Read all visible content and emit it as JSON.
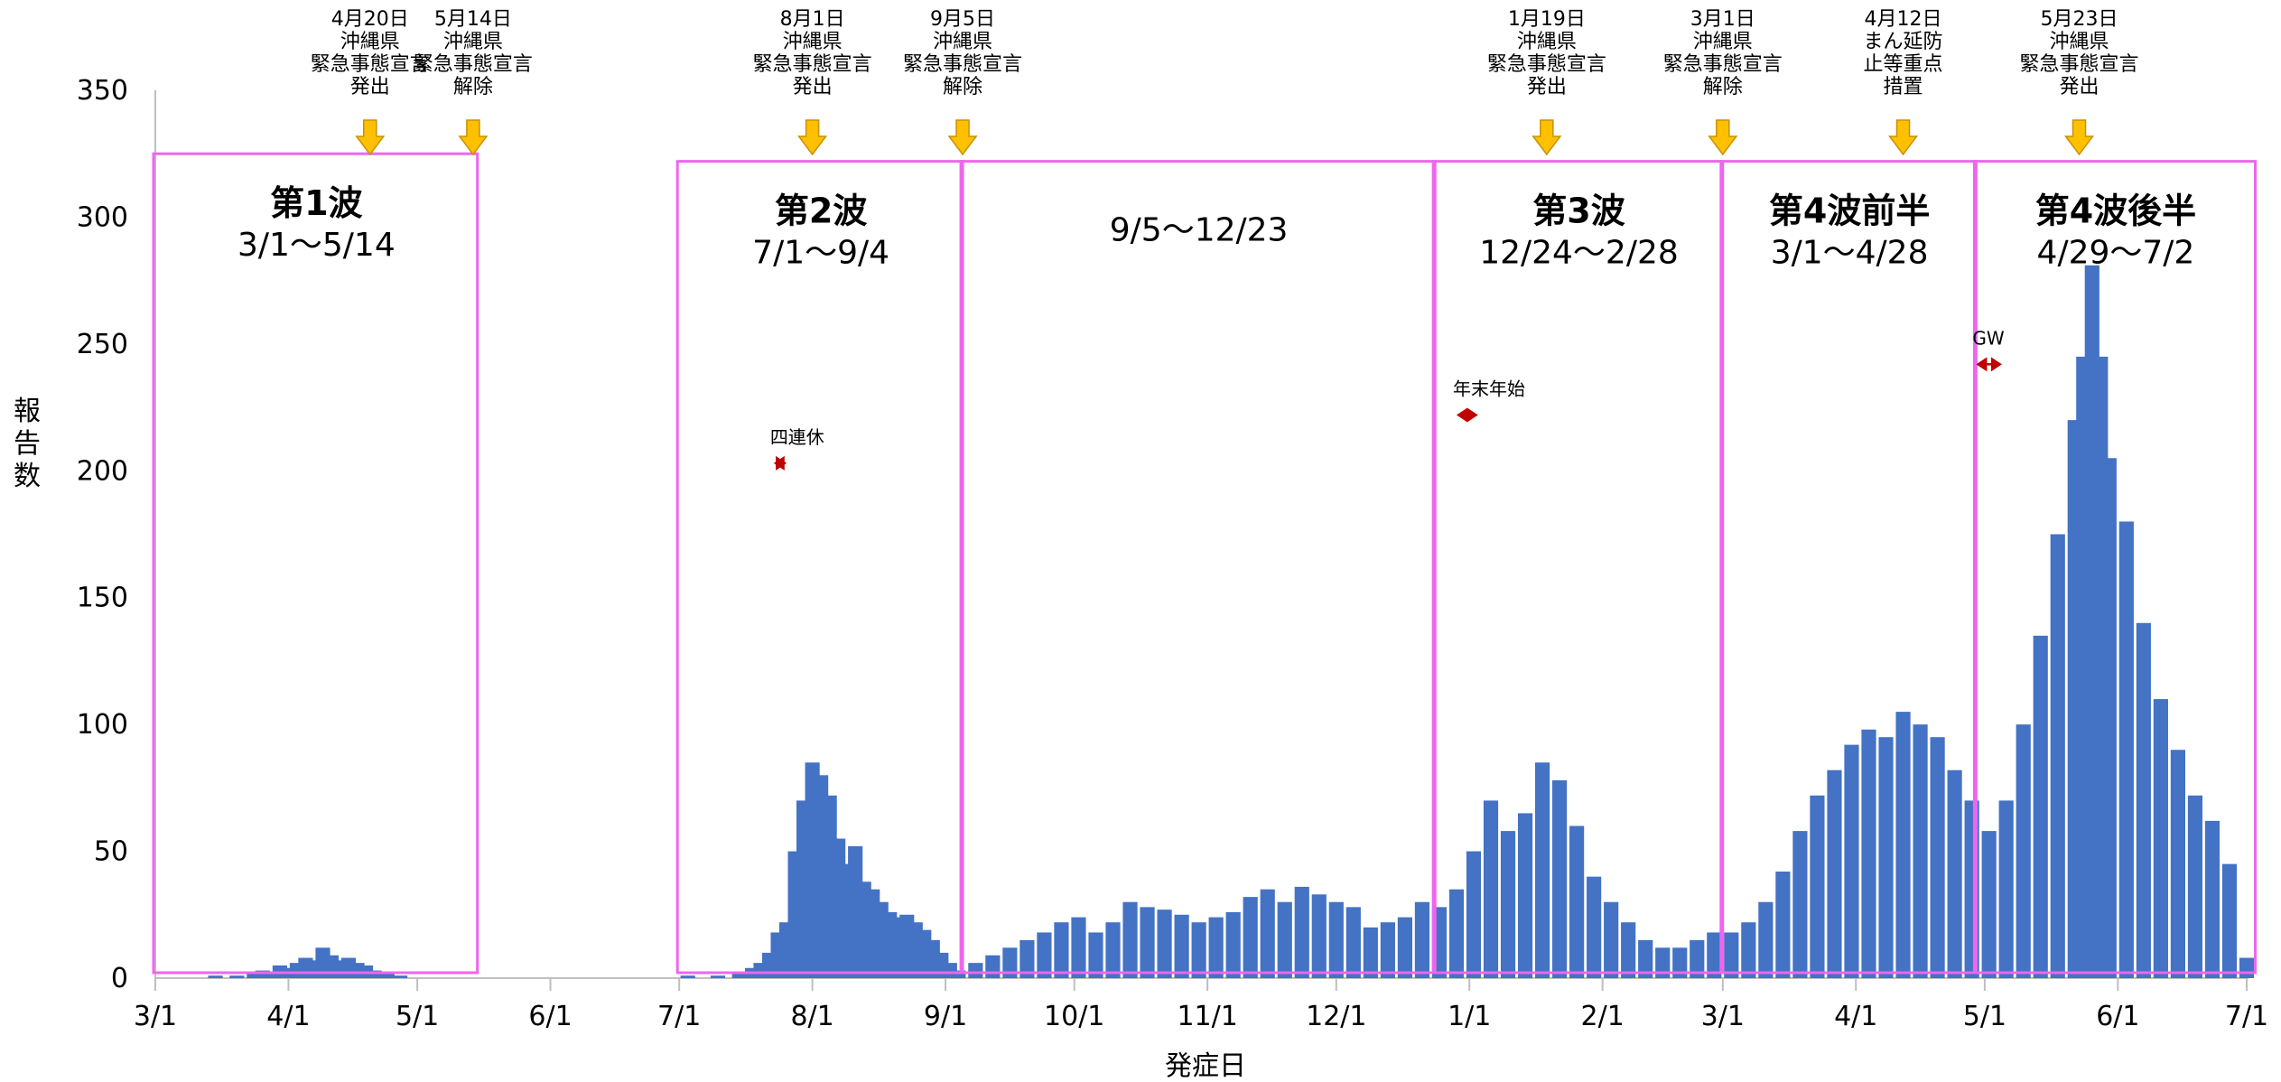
{
  "chart_data": {
    "type": "bar",
    "xlabel": "発症日",
    "ylabel": "報告数",
    "ylim": [
      0,
      350
    ],
    "yticks": [
      0,
      50,
      100,
      150,
      200,
      250,
      300,
      350
    ],
    "grid": false,
    "date_range": [
      "2020-03-01",
      "2021-07-02"
    ],
    "x_ticks": [
      {
        "date": "2020-03-01",
        "label": "3/1"
      },
      {
        "date": "2020-04-01",
        "label": "4/1"
      },
      {
        "date": "2020-05-01",
        "label": "5/1"
      },
      {
        "date": "2020-06-01",
        "label": "6/1"
      },
      {
        "date": "2020-07-01",
        "label": "7/1"
      },
      {
        "date": "2020-08-01",
        "label": "8/1"
      },
      {
        "date": "2020-09-01",
        "label": "9/1"
      },
      {
        "date": "2020-10-01",
        "label": "10/1"
      },
      {
        "date": "2020-11-01",
        "label": "11/1"
      },
      {
        "date": "2020-12-01",
        "label": "12/1"
      },
      {
        "date": "2021-01-01",
        "label": "1/1"
      },
      {
        "date": "2021-02-01",
        "label": "2/1"
      },
      {
        "date": "2021-03-01",
        "label": "3/1"
      },
      {
        "date": "2021-04-01",
        "label": "4/1"
      },
      {
        "date": "2021-05-01",
        "label": "5/1"
      },
      {
        "date": "2021-06-01",
        "label": "6/1"
      },
      {
        "date": "2021-07-01",
        "label": "7/1"
      }
    ],
    "series": [
      {
        "color": "#4472c4",
        "points": [
          [
            "2020-03-15",
            1
          ],
          [
            "2020-03-20",
            1
          ],
          [
            "2020-03-24",
            2
          ],
          [
            "2020-03-26",
            3
          ],
          [
            "2020-03-28",
            2
          ],
          [
            "2020-03-30",
            5
          ],
          [
            "2020-04-01",
            4
          ],
          [
            "2020-04-03",
            6
          ],
          [
            "2020-04-05",
            8
          ],
          [
            "2020-04-07",
            7
          ],
          [
            "2020-04-09",
            12
          ],
          [
            "2020-04-11",
            9
          ],
          [
            "2020-04-13",
            7
          ],
          [
            "2020-04-15",
            8
          ],
          [
            "2020-04-17",
            6
          ],
          [
            "2020-04-19",
            5
          ],
          [
            "2020-04-21",
            3
          ],
          [
            "2020-04-24",
            2
          ],
          [
            "2020-04-27",
            1
          ],
          [
            "2020-07-03",
            1
          ],
          [
            "2020-07-10",
            1
          ],
          [
            "2020-07-15",
            2
          ],
          [
            "2020-07-18",
            4
          ],
          [
            "2020-07-20",
            6
          ],
          [
            "2020-07-22",
            10
          ],
          [
            "2020-07-24",
            18
          ],
          [
            "2020-07-26",
            22
          ],
          [
            "2020-07-28",
            50
          ],
          [
            "2020-07-30",
            70
          ],
          [
            "2020-08-01",
            85
          ],
          [
            "2020-08-03",
            80
          ],
          [
            "2020-08-05",
            72
          ],
          [
            "2020-08-07",
            55
          ],
          [
            "2020-08-09",
            45
          ],
          [
            "2020-08-11",
            52
          ],
          [
            "2020-08-13",
            38
          ],
          [
            "2020-08-15",
            35
          ],
          [
            "2020-08-17",
            30
          ],
          [
            "2020-08-19",
            26
          ],
          [
            "2020-08-21",
            24
          ],
          [
            "2020-08-23",
            25
          ],
          [
            "2020-08-25",
            22
          ],
          [
            "2020-08-27",
            19
          ],
          [
            "2020-08-29",
            15
          ],
          [
            "2020-08-31",
            10
          ],
          [
            "2020-09-02",
            6
          ],
          [
            "2020-09-04",
            3
          ],
          [
            "2020-09-08",
            6
          ],
          [
            "2020-09-12",
            9
          ],
          [
            "2020-09-16",
            12
          ],
          [
            "2020-09-20",
            15
          ],
          [
            "2020-09-24",
            18
          ],
          [
            "2020-09-28",
            22
          ],
          [
            "2020-10-02",
            24
          ],
          [
            "2020-10-06",
            18
          ],
          [
            "2020-10-10",
            22
          ],
          [
            "2020-10-14",
            30
          ],
          [
            "2020-10-18",
            28
          ],
          [
            "2020-10-22",
            27
          ],
          [
            "2020-10-26",
            25
          ],
          [
            "2020-10-30",
            22
          ],
          [
            "2020-11-03",
            24
          ],
          [
            "2020-11-07",
            26
          ],
          [
            "2020-11-11",
            32
          ],
          [
            "2020-11-15",
            35
          ],
          [
            "2020-11-19",
            30
          ],
          [
            "2020-11-23",
            36
          ],
          [
            "2020-11-27",
            33
          ],
          [
            "2020-12-01",
            30
          ],
          [
            "2020-12-05",
            28
          ],
          [
            "2020-12-09",
            20
          ],
          [
            "2020-12-13",
            22
          ],
          [
            "2020-12-17",
            24
          ],
          [
            "2020-12-21",
            30
          ],
          [
            "2020-12-25",
            28
          ],
          [
            "2020-12-29",
            35
          ],
          [
            "2021-01-02",
            50
          ],
          [
            "2021-01-06",
            70
          ],
          [
            "2021-01-10",
            58
          ],
          [
            "2021-01-14",
            65
          ],
          [
            "2021-01-18",
            85
          ],
          [
            "2021-01-22",
            78
          ],
          [
            "2021-01-26",
            60
          ],
          [
            "2021-01-30",
            40
          ],
          [
            "2021-02-03",
            30
          ],
          [
            "2021-02-07",
            22
          ],
          [
            "2021-02-11",
            15
          ],
          [
            "2021-02-15",
            12
          ],
          [
            "2021-02-19",
            12
          ],
          [
            "2021-02-23",
            15
          ],
          [
            "2021-02-27",
            18
          ],
          [
            "2021-03-03",
            18
          ],
          [
            "2021-03-07",
            22
          ],
          [
            "2021-03-11",
            30
          ],
          [
            "2021-03-15",
            42
          ],
          [
            "2021-03-19",
            58
          ],
          [
            "2021-03-23",
            72
          ],
          [
            "2021-03-27",
            82
          ],
          [
            "2021-03-31",
            92
          ],
          [
            "2021-04-04",
            98
          ],
          [
            "2021-04-08",
            95
          ],
          [
            "2021-04-12",
            105
          ],
          [
            "2021-04-16",
            100
          ],
          [
            "2021-04-20",
            95
          ],
          [
            "2021-04-24",
            82
          ],
          [
            "2021-04-28",
            70
          ],
          [
            "2021-05-02",
            58
          ],
          [
            "2021-05-06",
            70
          ],
          [
            "2021-05-10",
            100
          ],
          [
            "2021-05-14",
            135
          ],
          [
            "2021-05-18",
            175
          ],
          [
            "2021-05-22",
            220
          ],
          [
            "2021-05-24",
            245
          ],
          [
            "2021-05-26",
            281
          ],
          [
            "2021-05-28",
            245
          ],
          [
            "2021-05-30",
            205
          ],
          [
            "2021-06-03",
            180
          ],
          [
            "2021-06-07",
            140
          ],
          [
            "2021-06-11",
            110
          ],
          [
            "2021-06-15",
            90
          ],
          [
            "2021-06-19",
            72
          ],
          [
            "2021-06-23",
            62
          ],
          [
            "2021-06-27",
            45
          ],
          [
            "2021-07-01",
            8
          ]
        ]
      }
    ],
    "waves": [
      {
        "name": "第1波",
        "range": "3/1～5/14",
        "start": "2020-03-01",
        "end": "2020-05-14",
        "top": 325
      },
      {
        "name": "第2波",
        "range": "7/1～9/4",
        "start": "2020-07-01",
        "end": "2020-09-04",
        "top": 322
      },
      {
        "name": "",
        "range": "9/5～12/23",
        "start": "2020-09-05",
        "end": "2020-12-23",
        "top": 322
      },
      {
        "name": "第3波",
        "range": "12/24～2/28",
        "start": "2020-12-24",
        "end": "2021-02-28",
        "top": 322
      },
      {
        "name": "第4波前半",
        "range": "3/1～4/28",
        "start": "2021-03-01",
        "end": "2021-04-28",
        "top": 322
      },
      {
        "name": "第4波後半",
        "range": "4/29～7/2",
        "start": "2021-04-29",
        "end": "2021-07-02",
        "top": 322
      }
    ],
    "annotations": [
      {
        "date": "2020-04-20",
        "lines": [
          "4月20日",
          "沖縄県",
          "緊急事態宣言",
          "発出"
        ]
      },
      {
        "date": "2020-05-14",
        "lines": [
          "5月14日",
          "沖縄県",
          "緊急事態宣言",
          "解除"
        ]
      },
      {
        "date": "2020-08-01",
        "lines": [
          "8月1日",
          "沖縄県",
          "緊急事態宣言",
          "発出"
        ]
      },
      {
        "date": "2020-09-05",
        "lines": [
          "9月5日",
          "沖縄県",
          "緊急事態宣言",
          "解除"
        ]
      },
      {
        "date": "2021-01-19",
        "lines": [
          "1月19日",
          "沖縄県",
          "緊急事態宣言",
          "発出"
        ]
      },
      {
        "date": "2021-03-01",
        "lines": [
          "3月1日",
          "沖縄県",
          "緊急事態宣言",
          "解除"
        ]
      },
      {
        "date": "2021-04-12",
        "lines": [
          "4月12日",
          "まん延防",
          "止等重点",
          "措置"
        ]
      },
      {
        "date": "2021-05-23",
        "lines": [
          "5月23日",
          "沖縄県",
          "緊急事態宣言",
          "発出"
        ]
      }
    ],
    "holidays": [
      {
        "label": "四連休",
        "start": "2020-07-23",
        "end": "2020-07-26",
        "y": 203
      },
      {
        "label": "年末年始",
        "start": "2020-12-29",
        "end": "2021-01-03",
        "y": 222
      },
      {
        "label": "GW",
        "start": "2021-04-29",
        "end": "2021-05-05",
        "y": 242
      }
    ]
  }
}
